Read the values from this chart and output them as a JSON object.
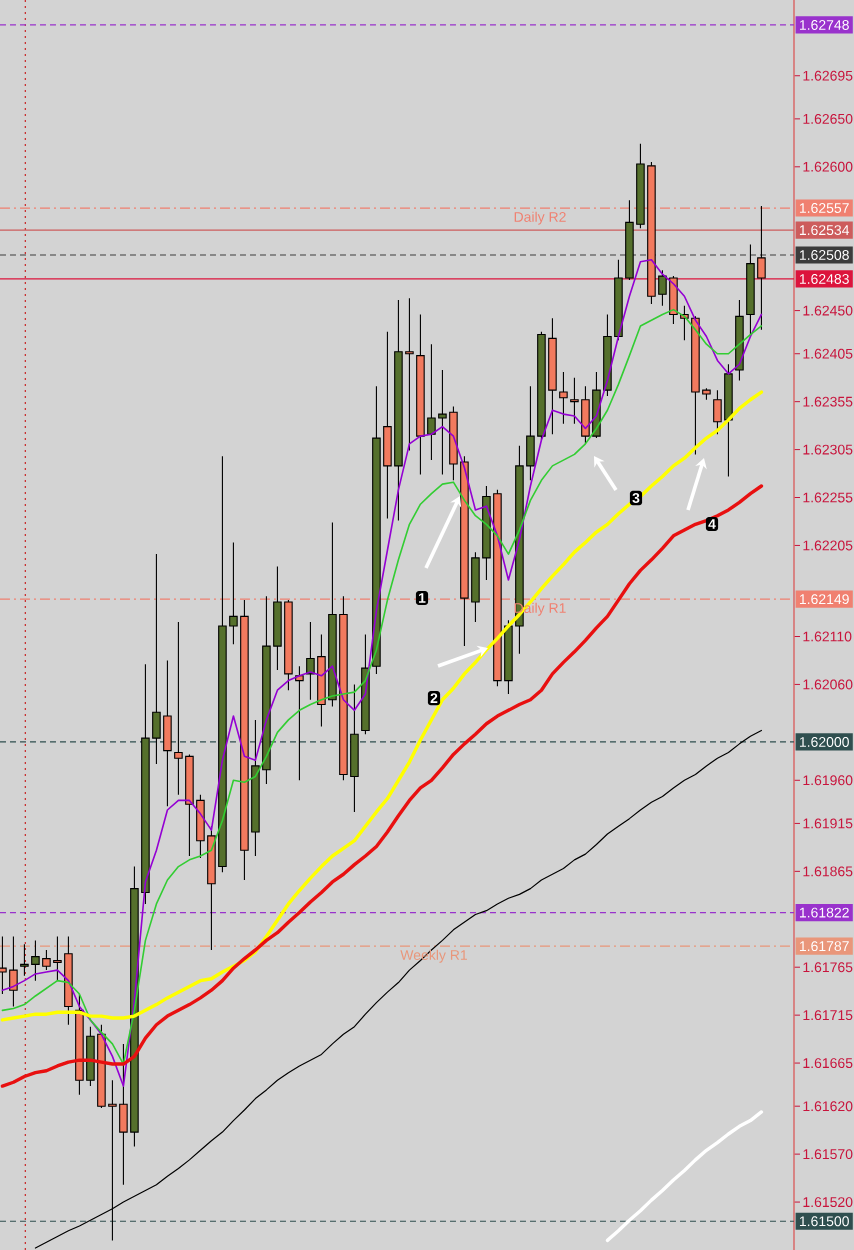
{
  "chart_data": {
    "type": "candlestick",
    "categories": [
      null,
      null,
      null,
      null,
      null,
      null,
      null,
      null,
      null,
      null,
      null,
      null,
      null,
      null,
      null,
      null,
      null,
      null,
      null,
      null,
      null,
      null,
      null,
      null,
      null,
      null,
      null,
      null,
      null,
      null,
      null,
      null,
      null,
      null,
      null,
      null,
      null,
      null,
      null,
      null,
      null,
      null,
      null,
      null,
      null,
      null,
      null,
      null,
      null,
      null,
      null,
      null,
      null,
      null,
      null,
      null,
      null,
      null,
      null,
      null,
      null,
      null,
      null,
      null,
      null,
      null,
      null,
      null,
      null,
      null
    ],
    "ohlc": [
      [
        1.61764,
        1.61797,
        1.61737,
        1.6176
      ],
      [
        1.61762,
        1.61797,
        1.61724,
        1.61741
      ],
      [
        1.61766,
        1.61789,
        1.61756,
        1.61768
      ],
      [
        1.61768,
        1.61793,
        1.61751,
        1.61776
      ],
      [
        1.61774,
        1.61783,
        1.61762,
        1.61766
      ],
      [
        1.61772,
        1.61797,
        1.61751,
        1.6177
      ],
      [
        1.61779,
        1.61797,
        1.61705,
        1.61724
      ],
      [
        1.6172,
        1.61737,
        1.61632,
        1.61647
      ],
      [
        1.61647,
        1.61703,
        1.61641,
        1.61693
      ],
      [
        1.61695,
        1.61705,
        1.61618,
        1.6162
      ],
      [
        1.61622,
        1.61647,
        1.6148,
        1.6162
      ],
      [
        1.61622,
        1.61685,
        1.61538,
        1.61593
      ],
      [
        1.61593,
        1.6187,
        1.61578,
        1.61847
      ],
      [
        1.61843,
        1.62081,
        1.61831,
        1.62004
      ],
      [
        1.62004,
        1.62196,
        1.61977,
        1.62031
      ],
      [
        1.62027,
        1.62085,
        1.61933,
        1.61991
      ],
      [
        1.61989,
        1.62125,
        1.61945,
        1.61983
      ],
      [
        1.61985,
        1.61987,
        1.61881,
        1.61935
      ],
      [
        1.61939,
        1.61945,
        1.61879,
        1.61897
      ],
      [
        1.61902,
        1.61912,
        1.61783,
        1.61852
      ],
      [
        1.6187,
        1.62298,
        1.61864,
        1.62121
      ],
      [
        1.62121,
        1.62208,
        1.62102,
        1.62131
      ],
      [
        1.62131,
        1.62148,
        1.61856,
        1.61887
      ],
      [
        1.61906,
        1.62023,
        1.61881,
        1.61975
      ],
      [
        1.61971,
        1.62152,
        1.61956,
        1.621
      ],
      [
        1.621,
        1.62183,
        1.62075,
        1.62146
      ],
      [
        1.62146,
        1.62148,
        1.62054,
        1.62071
      ],
      [
        1.62069,
        1.62079,
        1.6196,
        1.62064
      ],
      [
        1.62071,
        1.62125,
        1.62044,
        1.62087
      ],
      [
        1.62089,
        1.62112,
        1.62016,
        1.62039
      ],
      [
        1.62044,
        1.62229,
        1.62037,
        1.62133
      ],
      [
        1.62133,
        1.62152,
        1.6196,
        1.61966
      ],
      [
        1.61964,
        1.6206,
        1.61927,
        1.62008
      ],
      [
        1.62012,
        1.62112,
        1.62008,
        1.62077
      ],
      [
        1.62079,
        1.62371,
        1.62071,
        1.62317
      ],
      [
        1.62329,
        1.62428,
        1.62233,
        1.62288
      ],
      [
        1.62288,
        1.62461,
        1.62231,
        1.62407
      ],
      [
        1.62407,
        1.62463,
        1.62304,
        1.62405
      ],
      [
        1.62403,
        1.62446,
        1.62279,
        1.62319
      ],
      [
        1.62321,
        1.62415,
        1.62294,
        1.62338
      ],
      [
        1.62338,
        1.62388,
        1.62279,
        1.62342
      ],
      [
        1.62344,
        1.6235,
        1.62273,
        1.6229
      ],
      [
        1.62292,
        1.62298,
        1.621,
        1.6215
      ],
      [
        1.62146,
        1.62198,
        1.62125,
        1.62192
      ],
      [
        1.62192,
        1.62267,
        1.62169,
        1.62256
      ],
      [
        1.62259,
        1.62263,
        1.62058,
        1.62064
      ],
      [
        1.62064,
        1.62127,
        1.6205,
        1.62121
      ],
      [
        1.62121,
        1.62309,
        1.62092,
        1.62288
      ],
      [
        1.62288,
        1.62371,
        1.62273,
        1.62319
      ],
      [
        1.62319,
        1.62428,
        1.62315,
        1.62425
      ],
      [
        1.62421,
        1.62442,
        1.62321,
        1.62367
      ],
      [
        1.62365,
        1.62386,
        1.62332,
        1.62359
      ],
      [
        1.62357,
        1.6238,
        1.62332,
        1.62355
      ],
      [
        1.62357,
        1.62371,
        1.62311,
        1.62319
      ],
      [
        1.62319,
        1.62386,
        1.62317,
        1.62367
      ],
      [
        1.62367,
        1.62446,
        1.62361,
        1.62423
      ],
      [
        1.62423,
        1.62503,
        1.62419,
        1.62484
      ],
      [
        1.62484,
        1.62565,
        1.62482,
        1.62542
      ],
      [
        1.6254,
        1.62624,
        1.62536,
        1.62603
      ],
      [
        1.62601,
        1.62605,
        1.62457,
        1.62465
      ],
      [
        1.62467,
        1.62492,
        1.62455,
        1.62486
      ],
      [
        1.62484,
        1.62486,
        1.62436,
        1.62446
      ],
      [
        1.62446,
        1.62455,
        1.62419,
        1.62442
      ],
      [
        1.62442,
        1.62444,
        1.623,
        1.62365
      ],
      [
        1.62367,
        1.62369,
        1.62357,
        1.62363
      ],
      [
        1.62357,
        1.62367,
        1.62321,
        1.62334
      ],
      [
        1.62336,
        1.62394,
        1.62277,
        1.62384
      ],
      [
        1.62388,
        1.62461,
        1.62377,
        1.62444
      ],
      [
        1.62446,
        1.62519,
        1.62423,
        1.62499
      ],
      [
        1.62505,
        1.62559,
        1.6243,
        1.62484
      ]
    ],
    "colors": [
      "#f27a5e",
      "#f27a5e",
      "#55702c",
      "#55702c",
      "#f27a5e",
      "#f27a5e",
      "#f27a5e",
      "#f27a5e",
      "#55702c",
      "#f27a5e",
      "#f27a5e",
      "#f27a5e",
      "#55702c",
      "#55702c",
      "#55702c",
      "#f27a5e",
      "#f27a5e",
      "#f27a5e",
      "#f27a5e",
      "#f27a5e",
      "#55702c",
      "#55702c",
      "#f27a5e",
      "#55702c",
      "#55702c",
      "#55702c",
      "#f27a5e",
      "#f27a5e",
      "#55702c",
      "#f27a5e",
      "#55702c",
      "#f27a5e",
      "#55702c",
      "#55702c",
      "#55702c",
      "#f27a5e",
      "#55702c",
      "#f27a5e",
      "#f27a5e",
      "#55702c",
      "#55702c",
      "#f27a5e",
      "#f27a5e",
      "#55702c",
      "#55702c",
      "#f27a5e",
      "#55702c",
      "#55702c",
      "#55702c",
      "#55702c",
      "#f27a5e",
      "#f27a5e",
      "#f27a5e",
      "#f27a5e",
      "#55702c",
      "#55702c",
      "#55702c",
      "#55702c",
      "#55702c",
      "#f27a5e",
      "#55702c",
      "#f27a5e",
      "#f27a5e",
      "#f27a5e",
      "#f27a5e",
      "#f27a5e",
      "#55702c",
      "#55702c",
      "#55702c",
      "#f27a5e"
    ],
    "series": [
      {
        "type": "line",
        "color": "#9400d3",
        "values": [
          1.61741,
          1.61745,
          1.61751,
          1.61758,
          1.6176,
          1.61762,
          1.61751,
          1.61724,
          1.6171,
          1.61695,
          1.61672,
          1.61641,
          1.6173,
          1.61854,
          1.61887,
          1.61929,
          1.61939,
          1.61939,
          1.61925,
          1.61908,
          1.61981,
          1.62027,
          1.61985,
          1.61981,
          1.62023,
          1.62054,
          1.62064,
          1.62069,
          1.62073,
          1.62069,
          1.62079,
          1.62044,
          1.62033,
          1.6205,
          1.62137,
          1.622,
          1.62263,
          1.62311,
          1.62319,
          1.62321,
          1.62329,
          1.62319,
          1.62286,
          1.62242,
          1.62246,
          1.62215,
          1.62169,
          1.62211,
          1.62267,
          1.62315,
          1.62346,
          1.62342,
          1.6234,
          1.62327,
          1.6234,
          1.62377,
          1.62423,
          1.62465,
          1.62501,
          1.62503,
          1.62488,
          1.62478,
          1.62465,
          1.6244,
          1.62423,
          1.62398,
          1.62384,
          1.62394,
          1.62423,
          1.62446
        ]
      },
      {
        "type": "line",
        "color": "#32cd32",
        "values": [
          1.6172,
          1.61722,
          1.61726,
          1.61735,
          1.61743,
          1.61751,
          1.61749,
          1.61737,
          1.6171,
          1.61697,
          1.61685,
          1.61664,
          1.6172,
          1.61793,
          1.61831,
          1.61856,
          1.6187,
          1.61877,
          1.61881,
          1.61887,
          1.61918,
          1.6196,
          1.61958,
          1.61964,
          1.61985,
          1.6201,
          1.62023,
          1.62033,
          1.62039,
          1.62044,
          1.62048,
          1.6205,
          1.62052,
          1.62064,
          1.62096,
          1.62148,
          1.6219,
          1.62227,
          1.62248,
          1.62259,
          1.62269,
          1.62271,
          1.62252,
          1.62236,
          1.62227,
          1.62215,
          1.62196,
          1.62221,
          1.62252,
          1.62273,
          1.62288,
          1.62294,
          1.623,
          1.62311,
          1.62327,
          1.62346,
          1.62373,
          1.62403,
          1.62434,
          1.6244,
          1.62446,
          1.62451,
          1.62444,
          1.6243,
          1.62415,
          1.62405,
          1.62405,
          1.62415,
          1.62425,
          1.62434
        ]
      },
      {
        "type": "line",
        "color": "#ffff00",
        "values": [
          1.6171,
          1.61712,
          1.61714,
          1.61716,
          1.61716,
          1.61718,
          1.61718,
          1.61718,
          1.61714,
          1.61714,
          1.61712,
          1.61712,
          1.61714,
          1.6172,
          1.61726,
          1.61733,
          1.61739,
          1.61745,
          1.61751,
          1.61753,
          1.6176,
          1.61766,
          1.61772,
          1.61781,
          1.61797,
          1.61814,
          1.61831,
          1.61845,
          1.61858,
          1.6187,
          1.61881,
          1.61889,
          1.61897,
          1.61912,
          1.61927,
          1.61941,
          1.6196,
          1.61979,
          1.62002,
          1.62023,
          1.62044,
          1.62056,
          1.62071,
          1.62083,
          1.62096,
          1.62108,
          1.62121,
          1.62133,
          1.62146,
          1.6216,
          1.62173,
          1.62185,
          1.62198,
          1.62208,
          1.62219,
          1.62227,
          1.62238,
          1.62248,
          1.62256,
          1.62267,
          1.62277,
          1.62288,
          1.62296,
          1.62307,
          1.62317,
          1.62325,
          1.62336,
          1.62348,
          1.62357,
          1.62365
        ]
      },
      {
        "type": "line",
        "color": "#e81010",
        "values": [
          1.61641,
          1.61645,
          1.61651,
          1.61655,
          1.61657,
          1.61662,
          1.61666,
          1.61668,
          1.61668,
          1.61666,
          1.61664,
          1.61664,
          1.61672,
          1.61691,
          1.61705,
          1.61714,
          1.6172,
          1.61726,
          1.61733,
          1.61741,
          1.61751,
          1.61764,
          1.61774,
          1.61783,
          1.61793,
          1.61801,
          1.61812,
          1.61822,
          1.61833,
          1.61843,
          1.61854,
          1.61862,
          1.61872,
          1.61881,
          1.61891,
          1.61906,
          1.61923,
          1.61939,
          1.61952,
          1.6196,
          1.61973,
          1.61987,
          1.61998,
          1.62008,
          1.62019,
          1.62027,
          1.62033,
          1.62039,
          1.62044,
          1.62054,
          1.62071,
          1.62083,
          1.62094,
          1.62106,
          1.62119,
          1.62131,
          1.62148,
          1.62165,
          1.62179,
          1.6219,
          1.62202,
          1.62215,
          1.62221,
          1.62227,
          1.62231,
          1.62236,
          1.62242,
          1.6225,
          1.62259,
          1.62267
        ]
      },
      {
        "type": "line",
        "color": "#000000",
        "values": [
          null,
          null,
          null,
          1.61472,
          1.61478,
          1.61484,
          1.6149,
          1.61495,
          1.61501,
          1.61507,
          1.61513,
          1.6152,
          1.61526,
          1.61532,
          1.61538,
          1.61547,
          1.61555,
          1.61564,
          1.61574,
          1.61584,
          1.61593,
          1.61605,
          1.61616,
          1.61628,
          1.61637,
          1.61647,
          1.61655,
          1.61662,
          1.61668,
          1.61674,
          1.61685,
          1.61695,
          1.61703,
          1.61716,
          1.61728,
          1.61739,
          1.61749,
          1.61762,
          1.61772,
          1.61783,
          1.61793,
          1.61804,
          1.61812,
          1.6182,
          1.61824,
          1.61831,
          1.61837,
          1.61841,
          1.61847,
          1.61856,
          1.61862,
          1.61868,
          1.61877,
          1.61883,
          1.61893,
          1.61904,
          1.61912,
          1.6192,
          1.61929,
          1.61937,
          1.61943,
          1.61952,
          1.6196,
          1.61966,
          1.61975,
          1.61983,
          1.61989,
          1.61998,
          1.62006,
          1.62012
        ]
      },
      {
        "type": "line",
        "color": "#ffffff",
        "values": [
          null,
          null,
          null,
          null,
          null,
          null,
          null,
          null,
          null,
          null,
          null,
          null,
          null,
          null,
          null,
          null,
          null,
          null,
          null,
          null,
          null,
          null,
          null,
          null,
          null,
          null,
          null,
          null,
          null,
          null,
          null,
          null,
          null,
          null,
          null,
          null,
          null,
          null,
          null,
          null,
          null,
          null,
          null,
          null,
          null,
          null,
          null,
          null,
          null,
          null,
          null,
          null,
          null,
          null,
          null,
          1.6148,
          1.6149,
          1.61501,
          1.61511,
          1.61522,
          1.61532,
          1.61543,
          1.61553,
          1.61564,
          1.61574,
          1.61582,
          1.61591,
          1.61599,
          1.61605,
          1.61614
        ]
      }
    ],
    "ylim": [
      1.6147,
      1.62774
    ],
    "yticks": [
      1.62748,
      1.62695,
      {
        "value": 1.6265,
        "label": "1.62650"
      },
      {
        "value": 1.626,
        "label": "1.62600"
      },
      1.62557,
      1.62534,
      1.62508,
      1.62483,
      {
        "value": 1.6245,
        "label": "1.62450"
      },
      1.62405,
      1.62355,
      1.62305,
      1.62255,
      1.62205,
      1.62149,
      {
        "value": 1.6211,
        "label": "1.62110"
      },
      {
        "value": 1.6206,
        "label": "1.62060"
      },
      {
        "value": 1.62,
        "label": "1.62000"
      },
      {
        "value": 1.6196,
        "label": "1.61960"
      },
      1.61915,
      1.61865,
      1.61822,
      1.61787,
      1.61765,
      1.61715,
      1.61665,
      {
        "value": 1.6162,
        "label": "1.61620"
      },
      {
        "value": 1.6157,
        "label": "1.61570"
      },
      {
        "value": 1.6152,
        "label": "1.61520"
      },
      {
        "value": 1.615,
        "label": "1.61500"
      }
    ],
    "ref_lines": [
      {
        "axis": "y",
        "value": 1.62748,
        "color": "#9932cc",
        "line_style": "dashed"
      },
      {
        "axis": "y",
        "value": 1.62557,
        "label": "Daily R2",
        "color": "#f08070",
        "line_style": "dashdot"
      },
      {
        "axis": "y",
        "value": 1.62534,
        "color": "#cd5c5c",
        "line_style": "solid"
      },
      {
        "axis": "y",
        "value": 1.62508,
        "color": "#3c3c3c",
        "line_style": "dashed"
      },
      {
        "axis": "y",
        "value": 1.62483,
        "color": "#dc143c",
        "line_style": "solid"
      },
      {
        "axis": "y",
        "value": 1.62149,
        "label": "Daily R1",
        "color": "#f08070",
        "line_style": "dashdot"
      },
      {
        "axis": "y",
        "value": 1.62,
        "color": "#2f4f4f",
        "line_style": "dashed"
      },
      {
        "axis": "y",
        "value": 1.61822,
        "color": "#9932cc",
        "line_style": "dashed"
      },
      {
        "axis": "y",
        "value": 1.61787,
        "label": "Weekly R1",
        "color": "#e9967a",
        "line_style": "dashdot"
      },
      {
        "axis": "y",
        "value": 1.615,
        "color": "#2f4f4f",
        "line_style": "dashed"
      }
    ],
    "annotations": [
      "1",
      "2",
      "3",
      "4"
    ],
    "tick_labels": "y"
  }
}
